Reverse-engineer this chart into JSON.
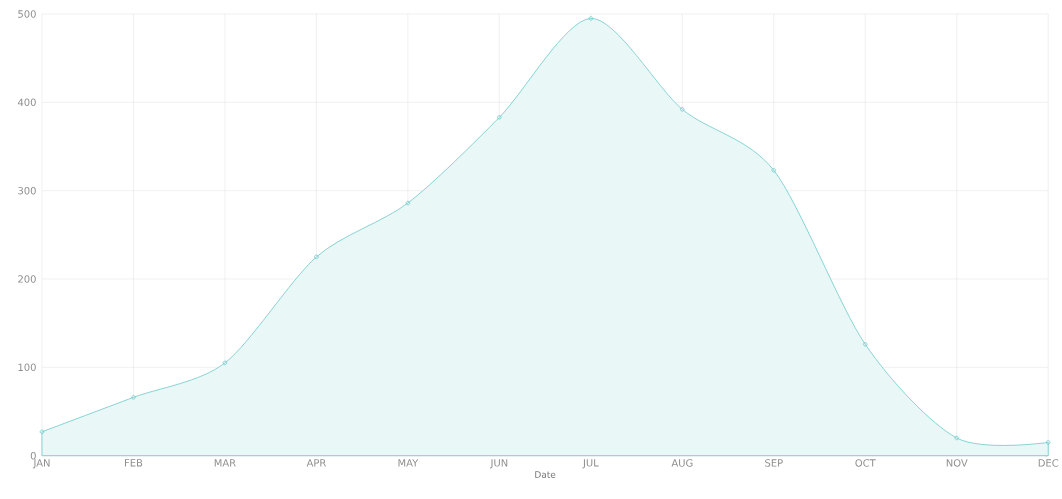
{
  "chart_data": {
    "type": "area",
    "xlabel": "Date",
    "categories": [
      "JAN",
      "FEB",
      "MAR",
      "APR",
      "MAY",
      "JUN",
      "JUL",
      "AUG",
      "SEP",
      "OCT",
      "NOV",
      "DEC"
    ],
    "values": [
      27,
      66,
      105,
      225,
      286,
      383,
      495,
      392,
      323,
      126,
      20,
      15
    ],
    "color": "#6cc9c9",
    "ylim": [
      0,
      500
    ],
    "yticks": [
      0,
      100,
      200,
      300,
      400,
      500
    ],
    "grid": true,
    "marker": "circle"
  }
}
